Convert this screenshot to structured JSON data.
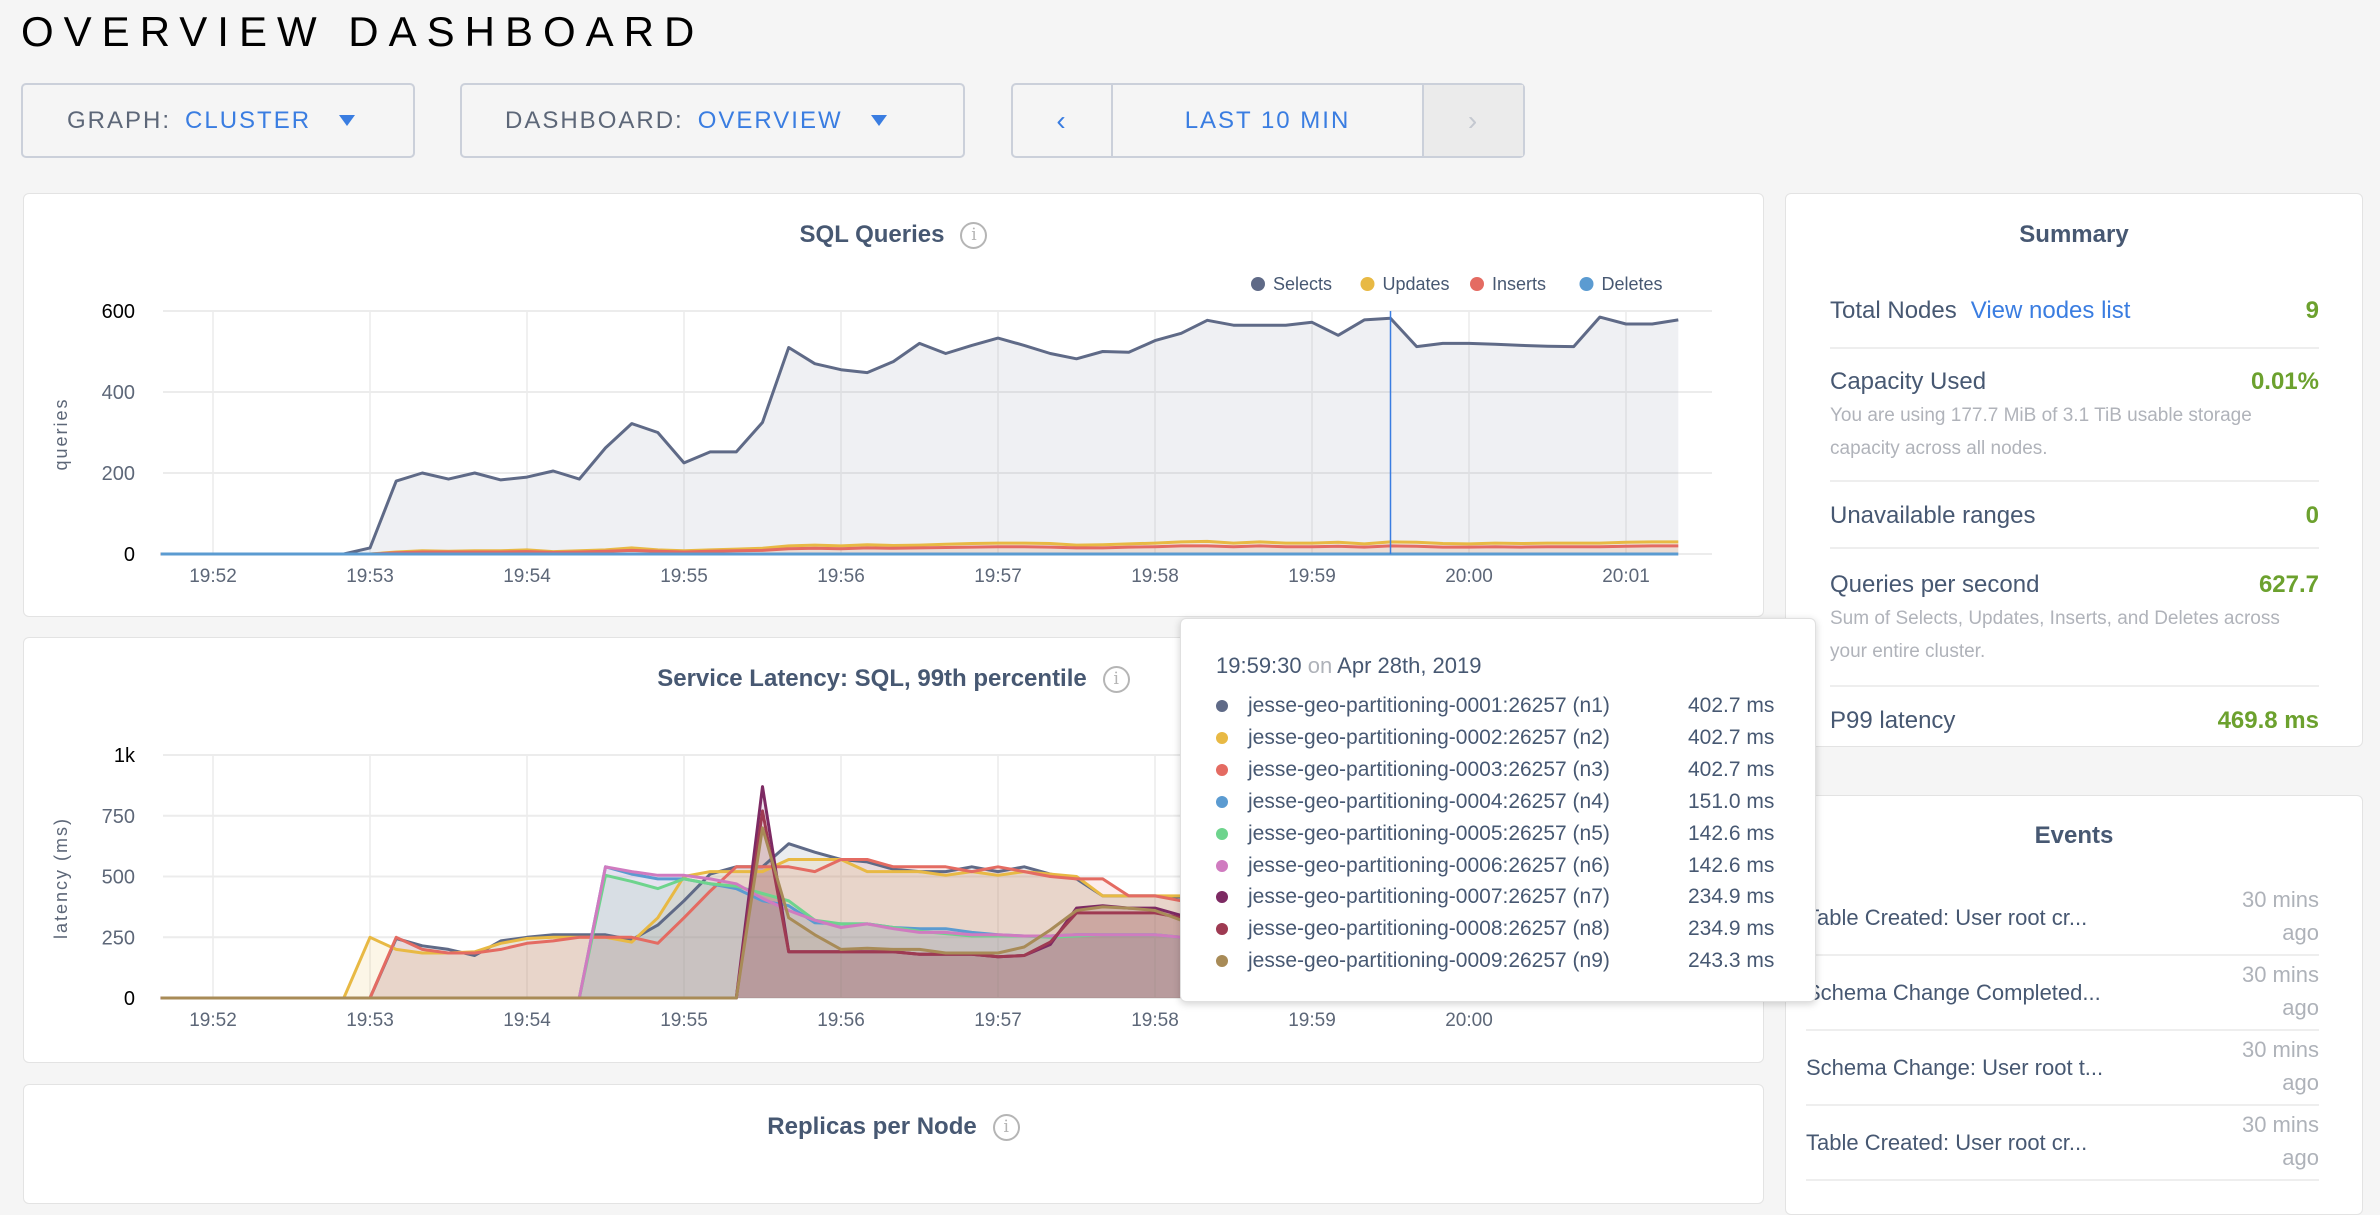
{
  "header": {
    "title": "OVERVIEW DASHBOARD"
  },
  "controls": {
    "graph": {
      "label": "GRAPH:",
      "value": "CLUSTER"
    },
    "dashboard": {
      "label": "DASHBOARD:",
      "value": "OVERVIEW"
    },
    "time": {
      "prev": "‹",
      "range": "LAST 10 MIN",
      "next": "›"
    }
  },
  "cards": {
    "sql_title": "SQL Queries",
    "latency_title": "Service Latency: SQL, 99th percentile",
    "replicas_title": "Replicas per Node",
    "info_glyph": "i"
  },
  "summary": {
    "title": "Summary",
    "total_nodes": {
      "label": "Total Nodes",
      "link": "View nodes list",
      "value": "9"
    },
    "capacity": {
      "label": "Capacity Used",
      "value": "0.01%",
      "sub": "You are using 177.7 MiB of 3.1 TiB usable storage capacity across all nodes."
    },
    "unavailable": {
      "label": "Unavailable ranges",
      "value": "0"
    },
    "qps": {
      "label": "Queries per second",
      "value": "627.7",
      "sub": "Sum of Selects, Updates, Inserts, and Deletes across your entire cluster."
    },
    "p99": {
      "label": "P99 latency",
      "value": "469.8 ms"
    },
    "value_color": "#6ca12e"
  },
  "events": {
    "title": "Events",
    "items": [
      {
        "text": "Table Created: User root cr...",
        "time": "30 mins ago"
      },
      {
        "text": "Schema Change Completed...",
        "time": "30 mins ago"
      },
      {
        "text": "Schema Change: User root t...",
        "time": "30 mins ago"
      },
      {
        "text": "Table Created: User root cr...",
        "time": "30 mins ago"
      }
    ]
  },
  "tooltip": {
    "time": "19:59:30",
    "on": "on",
    "date": "Apr 28th, 2019",
    "hover_x": "19:59:30",
    "values": [
      "402.7 ms",
      "402.7 ms",
      "402.7 ms",
      "151.0 ms",
      "142.6 ms",
      "142.6 ms",
      "234.9 ms",
      "234.9 ms",
      "243.3 ms"
    ]
  },
  "chart_data": [
    {
      "type": "area",
      "title": "SQL Queries",
      "ylabel": "queries",
      "ylim": [
        0,
        600
      ],
      "yticks": [
        {
          "v": 0,
          "label": "0"
        },
        {
          "v": 200,
          "label": "200"
        },
        {
          "v": 400,
          "label": "400"
        },
        {
          "v": 600,
          "label": "600"
        }
      ],
      "xticks": [
        "19:52",
        "19:53",
        "19:54",
        "19:55",
        "19:56",
        "19:57",
        "19:58",
        "19:59",
        "20:00",
        "20:01"
      ],
      "grid": true,
      "legend": "top-right",
      "hover_line_color": "#3a7de1",
      "x": [
        "19:51:40",
        "19:51:50",
        "19:52:00",
        "19:52:10",
        "19:52:20",
        "19:52:30",
        "19:52:40",
        "19:52:50",
        "19:53:00",
        "19:53:10",
        "19:53:20",
        "19:53:30",
        "19:53:40",
        "19:53:50",
        "19:54:00",
        "19:54:10",
        "19:54:20",
        "19:54:30",
        "19:54:40",
        "19:54:50",
        "19:55:00",
        "19:55:10",
        "19:55:20",
        "19:55:30",
        "19:55:40",
        "19:55:50",
        "19:56:00",
        "19:56:10",
        "19:56:20",
        "19:56:30",
        "19:56:40",
        "19:56:50",
        "19:57:00",
        "19:57:10",
        "19:57:20",
        "19:57:30",
        "19:57:40",
        "19:57:50",
        "19:58:00",
        "19:58:10",
        "19:58:20",
        "19:58:30",
        "19:58:40",
        "19:58:50",
        "19:59:00",
        "19:59:10",
        "19:59:20",
        "19:59:30",
        "19:59:40",
        "19:59:50",
        "20:00:00",
        "20:00:10",
        "20:00:20",
        "20:00:30",
        "20:00:40",
        "20:00:50",
        "20:01:00",
        "20:01:10",
        "20:01:20"
      ],
      "series": [
        {
          "name": "Selects",
          "color": "#5f6a87",
          "values": [
            0,
            0,
            0,
            0,
            0,
            0,
            0,
            0,
            15,
            180,
            200,
            185,
            200,
            183,
            190,
            205,
            185,
            262,
            322,
            300,
            225,
            252,
            252,
            325,
            510,
            470,
            455,
            448,
            475,
            520,
            495,
            515,
            533,
            515,
            495,
            482,
            500,
            498,
            527,
            545,
            577,
            565,
            565,
            565,
            572,
            540,
            578,
            582,
            512,
            520,
            520,
            518,
            515,
            513,
            512,
            585,
            568,
            568,
            578
          ]
        },
        {
          "name": "Updates",
          "color": "#e8b944",
          "values": [
            0,
            0,
            0,
            0,
            0,
            0,
            0,
            0,
            0,
            5,
            8,
            7,
            8,
            8,
            10,
            6,
            8,
            10,
            15,
            10,
            8,
            10,
            12,
            14,
            20,
            22,
            20,
            23,
            21,
            22,
            24,
            26,
            27,
            27,
            26,
            22,
            23,
            25,
            27,
            30,
            31,
            27,
            30,
            27,
            27,
            29,
            25,
            30,
            29,
            26,
            25,
            27,
            26,
            27,
            27,
            27,
            29,
            30,
            30
          ]
        },
        {
          "name": "Inserts",
          "color": "#e46b62",
          "values": [
            0,
            0,
            0,
            0,
            0,
            0,
            0,
            0,
            0,
            3,
            5,
            5,
            5,
            5,
            6,
            4,
            5,
            7,
            9,
            7,
            5,
            7,
            8,
            9,
            13,
            14,
            13,
            15,
            14,
            15,
            16,
            17,
            18,
            18,
            17,
            15,
            15,
            17,
            18,
            20,
            20,
            18,
            20,
            18,
            18,
            19,
            17,
            20,
            19,
            17,
            17,
            18,
            17,
            18,
            18,
            18,
            19,
            20,
            20
          ]
        },
        {
          "name": "Deletes",
          "color": "#5b9bd1",
          "values": [
            0,
            0,
            0,
            0,
            0,
            0,
            0,
            0,
            0,
            0,
            0,
            0,
            0,
            0,
            0,
            0,
            0,
            0,
            0,
            0,
            0,
            0,
            0,
            0,
            0,
            0,
            0,
            0,
            0,
            0,
            0,
            0,
            0,
            0,
            0,
            0,
            0,
            0,
            0,
            0,
            0,
            0,
            0,
            0,
            0,
            0,
            0,
            0,
            0,
            0,
            0,
            0,
            0,
            0,
            0,
            0,
            0,
            0,
            0
          ]
        }
      ]
    },
    {
      "type": "area",
      "title": "Service Latency: SQL, 99th percentile",
      "ylabel": "latency (ms)",
      "ylim": [
        0,
        1000
      ],
      "yticks": [
        {
          "v": 0,
          "label": "0"
        },
        {
          "v": 250,
          "label": "250"
        },
        {
          "v": 500,
          "label": "500"
        },
        {
          "v": 750,
          "label": "750"
        },
        {
          "v": 1000,
          "label": "1k"
        }
      ],
      "xticks": [
        "19:52",
        "19:53",
        "19:54",
        "19:55",
        "19:56",
        "19:57",
        "19:58",
        "19:59",
        "20:00"
      ],
      "grid": true,
      "hover_line_color": "#c8c8c8",
      "series": [
        {
          "name": "jesse-geo-partitioning-0001:26257 (n1)",
          "color": "#5f6a87",
          "values": [
            0,
            0,
            0,
            0,
            0,
            0,
            0,
            0,
            0,
            245,
            215,
            200,
            175,
            235,
            250,
            260,
            260,
            260,
            240,
            300,
            400,
            510,
            540,
            540,
            635,
            600,
            570,
            560,
            530,
            520,
            520,
            540,
            520,
            540,
            510,
            490,
            420,
            420,
            420,
            415,
            410,
            410,
            410,
            410,
            410,
            420,
            410,
            402.7,
            410,
            420,
            420,
            420,
            420,
            420,
            420,
            420,
            420,
            420,
            420
          ]
        },
        {
          "name": "jesse-geo-partitioning-0002:26257 (n2)",
          "color": "#e8b944",
          "values": [
            0,
            0,
            0,
            0,
            0,
            0,
            0,
            0,
            250,
            200,
            185,
            185,
            190,
            225,
            245,
            250,
            250,
            250,
            230,
            330,
            500,
            520,
            520,
            520,
            570,
            570,
            570,
            520,
            520,
            520,
            505,
            520,
            505,
            520,
            510,
            500,
            420,
            420,
            420,
            420,
            420,
            430,
            430,
            430,
            430,
            420,
            410,
            402.7,
            410,
            430,
            440,
            440,
            440,
            440,
            440,
            440,
            440,
            440,
            440
          ]
        },
        {
          "name": "jesse-geo-partitioning-0003:26257 (n3)",
          "color": "#e46b62",
          "values": [
            0,
            0,
            0,
            0,
            0,
            0,
            0,
            0,
            0,
            250,
            200,
            185,
            185,
            200,
            225,
            235,
            250,
            250,
            250,
            225,
            330,
            440,
            540,
            540,
            540,
            520,
            570,
            570,
            540,
            540,
            540,
            520,
            540,
            520,
            500,
            490,
            490,
            420,
            420,
            400,
            400,
            400,
            400,
            420,
            420,
            420,
            400,
            402.7,
            400,
            400,
            400,
            400,
            400,
            400,
            400,
            400,
            400,
            400,
            400
          ]
        },
        {
          "name": "jesse-geo-partitioning-0004:26257 (n4)",
          "color": "#5b9bd1",
          "values": [
            0,
            0,
            0,
            0,
            0,
            0,
            0,
            0,
            0,
            0,
            0,
            0,
            0,
            0,
            0,
            0,
            0,
            540,
            510,
            490,
            490,
            470,
            450,
            400,
            380,
            310,
            305,
            305,
            290,
            285,
            285,
            270,
            260,
            255,
            255,
            260,
            260,
            260,
            260,
            250,
            180,
            175,
            165,
            165,
            165,
            155,
            155,
            151,
            220,
            230,
            230,
            230,
            230,
            230,
            230,
            230,
            230,
            230,
            230
          ]
        },
        {
          "name": "jesse-geo-partitioning-0005:26257 (n5)",
          "color": "#6ed48d",
          "values": [
            0,
            0,
            0,
            0,
            0,
            0,
            0,
            0,
            0,
            0,
            0,
            0,
            0,
            0,
            0,
            0,
            0,
            505,
            480,
            450,
            490,
            470,
            460,
            430,
            400,
            320,
            305,
            305,
            290,
            275,
            265,
            255,
            255,
            255,
            250,
            255,
            260,
            260,
            260,
            250,
            170,
            175,
            160,
            160,
            160,
            150,
            145,
            142.6,
            220,
            230,
            230,
            230,
            230,
            230,
            230,
            230,
            230,
            230,
            230
          ]
        },
        {
          "name": "jesse-geo-partitioning-0006:26257 (n6)",
          "color": "#d07bc0",
          "values": [
            0,
            0,
            0,
            0,
            0,
            0,
            0,
            0,
            0,
            0,
            0,
            0,
            0,
            0,
            0,
            0,
            0,
            540,
            520,
            505,
            505,
            490,
            470,
            410,
            360,
            320,
            290,
            305,
            285,
            270,
            270,
            260,
            260,
            255,
            255,
            260,
            260,
            260,
            260,
            250,
            175,
            175,
            165,
            165,
            165,
            150,
            145,
            142.6,
            220,
            230,
            230,
            230,
            230,
            230,
            230,
            230,
            230,
            230,
            230
          ]
        },
        {
          "name": "jesse-geo-partitioning-0007:26257 (n7)",
          "color": "#7d2a63",
          "values": [
            0,
            0,
            0,
            0,
            0,
            0,
            0,
            0,
            0,
            0,
            0,
            0,
            0,
            0,
            0,
            0,
            0,
            0,
            0,
            0,
            0,
            0,
            0,
            870,
            190,
            190,
            190,
            190,
            190,
            180,
            180,
            180,
            170,
            175,
            220,
            370,
            380,
            370,
            370,
            340,
            330,
            240,
            240,
            240,
            235,
            235,
            235,
            234.9,
            240,
            260,
            260,
            260,
            260,
            260,
            260,
            260,
            260,
            260,
            260
          ]
        },
        {
          "name": "jesse-geo-partitioning-0008:26257 (n8)",
          "color": "#9e3a52",
          "values": [
            0,
            0,
            0,
            0,
            0,
            0,
            0,
            0,
            0,
            0,
            0,
            0,
            0,
            0,
            0,
            0,
            0,
            0,
            0,
            0,
            0,
            0,
            0,
            770,
            190,
            190,
            190,
            190,
            190,
            180,
            180,
            180,
            170,
            175,
            230,
            350,
            350,
            350,
            350,
            330,
            320,
            230,
            230,
            230,
            230,
            235,
            235,
            234.9,
            240,
            260,
            260,
            260,
            260,
            260,
            260,
            260,
            260,
            260,
            260
          ]
        },
        {
          "name": "jesse-geo-partitioning-0009:26257 (n9)",
          "color": "#a88b57",
          "values": [
            0,
            0,
            0,
            0,
            0,
            0,
            0,
            0,
            0,
            0,
            0,
            0,
            0,
            0,
            0,
            0,
            0,
            0,
            0,
            0,
            0,
            0,
            0,
            700,
            330,
            260,
            200,
            205,
            200,
            200,
            185,
            185,
            185,
            210,
            280,
            360,
            375,
            370,
            360,
            320,
            310,
            235,
            235,
            235,
            225,
            235,
            235,
            243.3,
            250,
            260,
            260,
            260,
            260,
            260,
            260,
            260,
            260,
            260,
            260
          ]
        }
      ]
    }
  ]
}
